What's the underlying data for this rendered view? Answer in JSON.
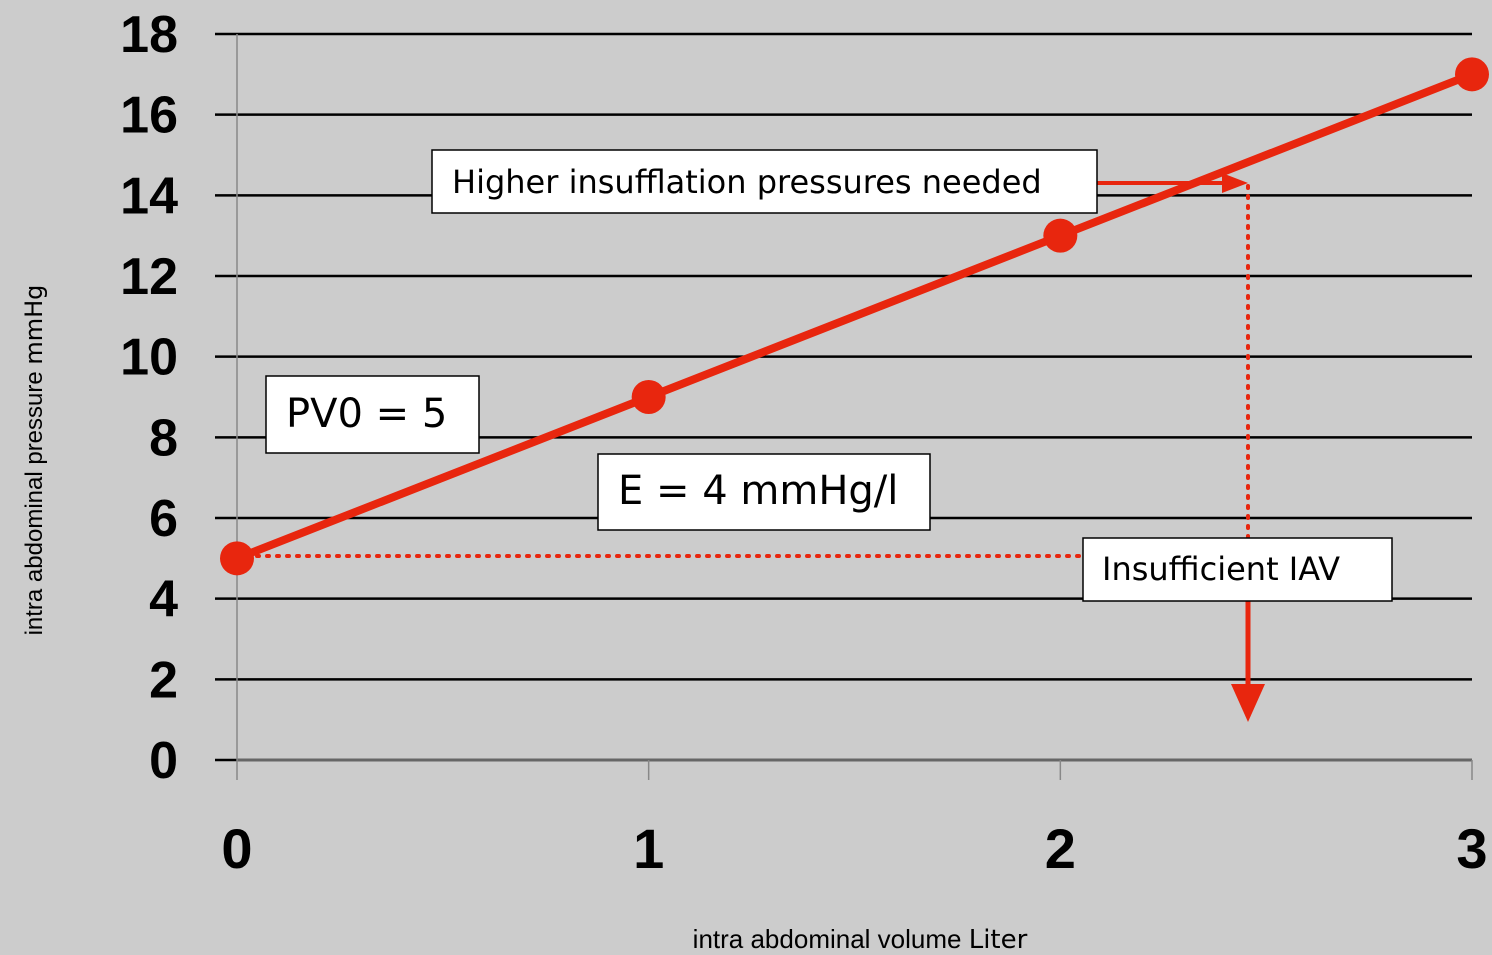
{
  "chart_data": {
    "type": "line",
    "ylabel": "intra abdominal pressure",
    "yunit": "mmHg",
    "xlabel": "intra abdominal volume",
    "xunit": "Liter",
    "x": [
      0,
      1,
      2,
      3
    ],
    "series": [
      {
        "color": "#e8260e",
        "values": [
          5,
          9,
          13,
          17
        ]
      }
    ],
    "xlim": [
      0,
      3
    ],
    "xticks": [
      0,
      1,
      2,
      3
    ],
    "ylim": [
      0,
      18
    ],
    "yticks": [
      0,
      2,
      4,
      6,
      8,
      10,
      12,
      14,
      16,
      18
    ],
    "grid": true,
    "annotations": [
      "Higher insufflation pressures needed",
      "PV0 = 5",
      "E = 4 mmHg/l",
      "Insufficient IAV"
    ]
  }
}
